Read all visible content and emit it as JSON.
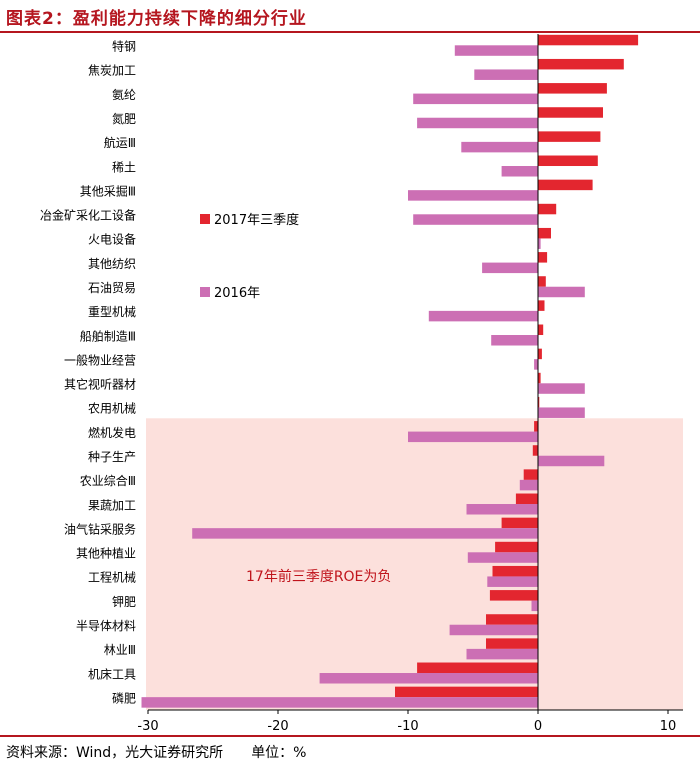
{
  "header": {
    "title": "图表2：盈利能力持续下降的细分行业"
  },
  "footer": {
    "source": "资料来源：Wind，光大证券研究所",
    "unit": "单位：%"
  },
  "colors": {
    "series_2017": "#e3262f",
    "series_2016": "#cc6fb4",
    "highlight_bg": "#fce0dc",
    "annotation": "#c0141c",
    "title": "#b5161f"
  },
  "chart_data": {
    "type": "bar",
    "orientation": "horizontal",
    "categories": [
      "特钢",
      "焦炭加工",
      "氨纶",
      "氮肥",
      "航运Ⅲ",
      "稀土",
      "其他采掘Ⅲ",
      "冶金矿采化工设备",
      "火电设备",
      "其他纺织",
      "石油贸易",
      "重型机械",
      "船舶制造Ⅲ",
      "一般物业经营",
      "其它视听器材",
      "农用机械",
      "燃机发电",
      "种子生产",
      "农业综合Ⅲ",
      "果蔬加工",
      "油气钻采服务",
      "其他种植业",
      "工程机械",
      "钾肥",
      "半导体材料",
      "林业Ⅲ",
      "机床工具",
      "磷肥"
    ],
    "series": [
      {
        "name": "2017年三季度",
        "values": [
          7.7,
          6.6,
          5.3,
          5.0,
          4.8,
          4.6,
          4.2,
          1.4,
          1.0,
          0.7,
          0.6,
          0.5,
          0.4,
          0.3,
          0.2,
          0.1,
          -0.3,
          -0.4,
          -1.1,
          -1.7,
          -2.8,
          -3.3,
          -3.5,
          -3.7,
          -4.0,
          -4.0,
          -9.3,
          -11.0
        ]
      },
      {
        "name": "2016年",
        "values": [
          -6.4,
          -4.9,
          -9.6,
          -9.3,
          -5.9,
          -2.8,
          -10.0,
          -9.6,
          0.2,
          -4.3,
          3.6,
          -8.4,
          -3.6,
          -0.3,
          3.6,
          3.6,
          -10.0,
          5.1,
          -1.4,
          -5.5,
          -26.6,
          -5.4,
          -3.9,
          -0.5,
          -6.8,
          -5.5,
          -16.8,
          -30.5
        ]
      }
    ],
    "xlim": [
      -30,
      10
    ],
    "xticks": [
      -30,
      -20,
      -10,
      0,
      10
    ],
    "legend": [
      "2017年三季度",
      "2016年"
    ],
    "annotation": "17年前三季度ROE为负",
    "highlight_from_category": "燃机发电"
  }
}
